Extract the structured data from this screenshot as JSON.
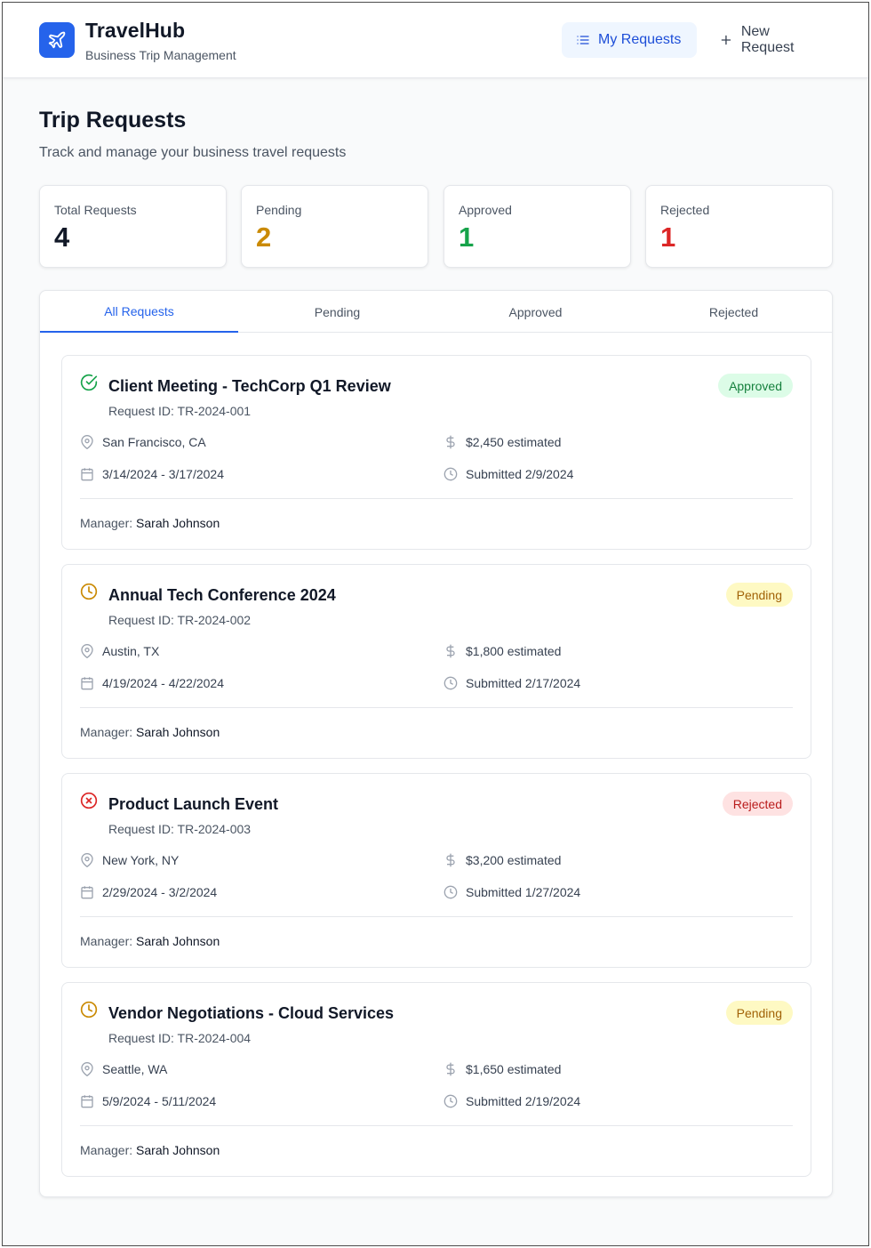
{
  "app": {
    "name": "TravelHub",
    "subtitle": "Business Trip Management"
  },
  "nav": {
    "my_requests": "My Requests",
    "new_request": "New Request"
  },
  "page": {
    "title": "Trip Requests",
    "subtitle": "Track and manage your business travel requests"
  },
  "stats": [
    {
      "label": "Total Requests",
      "value": "4",
      "color": "#111827"
    },
    {
      "label": "Pending",
      "value": "2",
      "color": "#ca8a04"
    },
    {
      "label": "Approved",
      "value": "1",
      "color": "#16a34a"
    },
    {
      "label": "Rejected",
      "value": "1",
      "color": "#dc2626"
    }
  ],
  "tabs": [
    "All Requests",
    "Pending",
    "Approved",
    "Rejected"
  ],
  "active_tab": "All Requests",
  "manager_label": "Manager:",
  "requests": [
    {
      "status": "approved",
      "status_label": "Approved",
      "status_icon": "check-circle-icon",
      "title": "Client Meeting - TechCorp Q1 Review",
      "request_id": "Request ID: TR-2024-001",
      "location": "San Francisco, CA",
      "cost": "$2,450 estimated",
      "dates": "3/14/2024 - 3/17/2024",
      "submitted": "Submitted 2/9/2024",
      "manager": "Sarah Johnson"
    },
    {
      "status": "pending",
      "status_label": "Pending",
      "status_icon": "clock-icon",
      "title": "Annual Tech Conference 2024",
      "request_id": "Request ID: TR-2024-002",
      "location": "Austin, TX",
      "cost": "$1,800 estimated",
      "dates": "4/19/2024 - 4/22/2024",
      "submitted": "Submitted 2/17/2024",
      "manager": "Sarah Johnson"
    },
    {
      "status": "rejected",
      "status_label": "Rejected",
      "status_icon": "x-circle-icon",
      "title": "Product Launch Event",
      "request_id": "Request ID: TR-2024-003",
      "location": "New York, NY",
      "cost": "$3,200 estimated",
      "dates": "2/29/2024 - 3/2/2024",
      "submitted": "Submitted 1/27/2024",
      "manager": "Sarah Johnson"
    },
    {
      "status": "pending",
      "status_label": "Pending",
      "status_icon": "clock-icon",
      "title": "Vendor Negotiations - Cloud Services",
      "request_id": "Request ID: TR-2024-004",
      "location": "Seattle, WA",
      "cost": "$1,650 estimated",
      "dates": "5/9/2024 - 5/11/2024",
      "submitted": "Submitted 2/19/2024",
      "manager": "Sarah Johnson"
    }
  ],
  "colors": {
    "brand": "#2563eb",
    "approved": "#16a34a",
    "pending": "#ca8a04",
    "rejected": "#dc2626"
  }
}
